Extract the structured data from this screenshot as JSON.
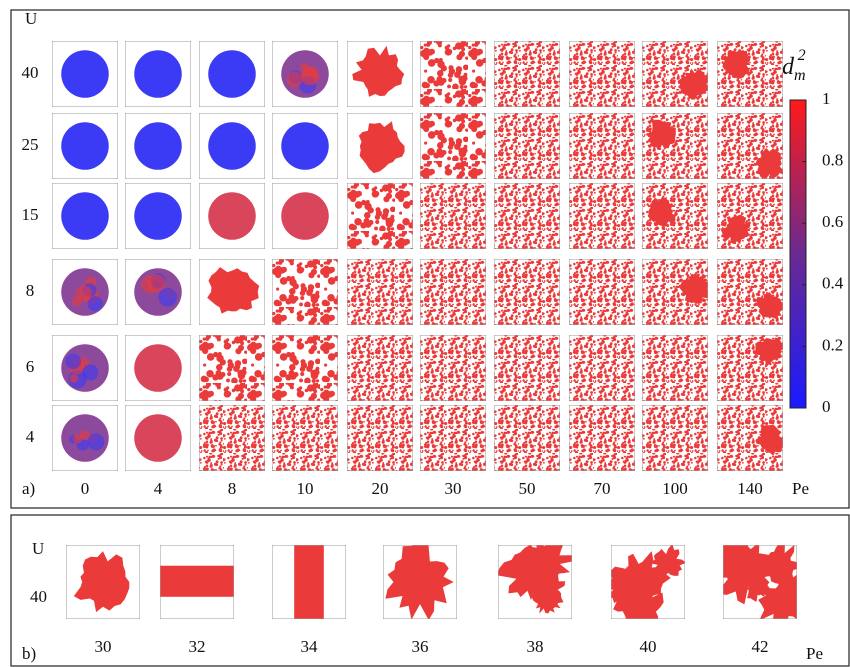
{
  "panel_a": {
    "label": "a)",
    "y_axis_label": "U",
    "x_axis_label": "Pe",
    "rows": [
      "40",
      "25",
      "15",
      "8",
      "6",
      "4"
    ],
    "columns": [
      "0",
      "4",
      "8",
      "10",
      "20",
      "30",
      "50",
      "70",
      "100",
      "140"
    ],
    "colorbar": {
      "label_base": "d",
      "label_subscript": "m",
      "label_superscript": "2",
      "range": [
        0,
        1
      ],
      "ticks": [
        0,
        0.2,
        0.4,
        0.6,
        0.8,
        1
      ]
    }
  },
  "panel_b": {
    "label": "b)",
    "y_axis_label": "U",
    "row": "40",
    "x_axis_label": "Pe",
    "columns": [
      "30",
      "32",
      "34",
      "36",
      "38",
      "40",
      "42"
    ]
  }
}
